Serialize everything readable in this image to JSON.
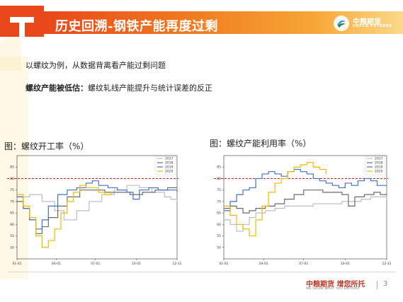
{
  "slide": {
    "title": "历史回溯-钢铁产能再度过剩",
    "logo_cn": "中粮期货",
    "logo_en": "COFCO FUTURES",
    "text1": "以螺纹为例，从数据背离看产能过剩问题",
    "text2_bold": "螺纹产能被低估：",
    "text2_rest": "螺纹轧线产能提升与统计误差的反正",
    "caption_left": "图：螺纹开工率（%）",
    "caption_right": "图：螺纹产能利用率（%）",
    "footer_cn": "中粮期货 增您所托",
    "footer_en": "WE GROW WHAT YOU ENTRUST",
    "page_number": "3"
  },
  "colors": {
    "header_start": "#e8471a",
    "header_end": "#fbd98a",
    "s2017": "#bdbdbd",
    "s2018": "#6b6b6b",
    "s2019": "#4472c4",
    "s2020": "#f5b800",
    "reference": "#d7191c"
  },
  "chart_data": [
    {
      "type": "line",
      "x_ticks": [
        "01-01",
        "04-01",
        "07-01",
        "10-01",
        "12-31"
      ],
      "ylim": [
        45,
        90
      ],
      "y_ticks": [
        "50",
        "55",
        "60",
        "65",
        "70",
        "75",
        "80",
        "85"
      ],
      "reference_line": 80,
      "legend_position": "top-right",
      "series": [
        {
          "name": "2017",
          "values": [
            [
              1,
              72
            ],
            [
              5,
              73
            ],
            [
              9,
              70
            ],
            [
              13,
              66
            ],
            [
              16,
              62
            ],
            [
              20,
              66
            ],
            [
              24,
              70
            ],
            [
              28,
              73
            ],
            [
              32,
              75
            ],
            [
              36,
              77
            ],
            [
              40,
              76
            ],
            [
              44,
              74
            ],
            [
              48,
              72
            ],
            [
              50,
              71
            ],
            [
              52,
              70
            ]
          ]
        },
        {
          "name": "2018",
          "values": [
            [
              1,
              70
            ],
            [
              3,
              67
            ],
            [
              5,
              62
            ],
            [
              7,
              56
            ],
            [
              9,
              59
            ],
            [
              11,
              63
            ],
            [
              14,
              68
            ],
            [
              17,
              72
            ],
            [
              21,
              75
            ],
            [
              25,
              75
            ],
            [
              29,
              74
            ],
            [
              33,
              74
            ],
            [
              37,
              73
            ],
            [
              41,
              74
            ],
            [
              45,
              75
            ],
            [
              49,
              76
            ],
            [
              52,
              76
            ]
          ]
        },
        {
          "name": "2019",
          "values": [
            [
              1,
              72
            ],
            [
              3,
              67
            ],
            [
              5,
              62
            ],
            [
              7,
              58
            ],
            [
              9,
              62
            ],
            [
              11,
              68
            ],
            [
              14,
              73
            ],
            [
              17,
              75
            ],
            [
              20,
              76
            ],
            [
              23,
              78
            ],
            [
              25,
              79
            ],
            [
              27,
              77
            ],
            [
              30,
              76
            ],
            [
              33,
              75
            ],
            [
              36,
              74
            ],
            [
              38,
              71
            ],
            [
              40,
              75
            ],
            [
              43,
              76
            ],
            [
              46,
              75
            ],
            [
              49,
              75
            ],
            [
              52,
              74
            ]
          ]
        },
        {
          "name": "2020",
          "values": [
            [
              1,
              73
            ],
            [
              3,
              68
            ],
            [
              5,
              63
            ],
            [
              7,
              55
            ],
            [
              9,
              50
            ],
            [
              11,
              53
            ],
            [
              13,
              58
            ],
            [
              15,
              65
            ],
            [
              17,
              70
            ],
            [
              19,
              74
            ],
            [
              21,
              77
            ],
            [
              23,
              76
            ],
            [
              25,
              76
            ],
            [
              27,
              74
            ],
            [
              29,
              73
            ],
            [
              31,
              74
            ]
          ]
        }
      ]
    },
    {
      "type": "line",
      "x_ticks": [
        "01-01",
        "04-01",
        "07-01",
        "10-01",
        "12-31"
      ],
      "ylim": [
        45,
        90
      ],
      "y_ticks": [
        "50",
        "55",
        "60",
        "65",
        "70",
        "75",
        "80",
        "85"
      ],
      "reference_line": 80,
      "legend_position": "top-right",
      "series": [
        {
          "name": "2017",
          "values": [
            [
              1,
              62
            ],
            [
              3,
              60
            ],
            [
              5,
              57
            ],
            [
              7,
              60
            ],
            [
              9,
              63
            ],
            [
              11,
              65
            ],
            [
              14,
              66
            ],
            [
              17,
              67
            ],
            [
              20,
              68
            ],
            [
              23,
              68
            ],
            [
              26,
              68
            ],
            [
              29,
              69
            ],
            [
              32,
              69
            ],
            [
              35,
              69
            ],
            [
              38,
              70
            ],
            [
              41,
              70
            ],
            [
              44,
              71
            ],
            [
              47,
              72
            ],
            [
              50,
              72
            ],
            [
              52,
              71
            ]
          ]
        },
        {
          "name": "2018",
          "values": [
            [
              1,
              67
            ],
            [
              3,
              68
            ],
            [
              5,
              67
            ],
            [
              7,
              65
            ],
            [
              9,
              66
            ],
            [
              11,
              67
            ],
            [
              14,
              68
            ],
            [
              17,
              69
            ],
            [
              20,
              71
            ],
            [
              23,
              73
            ],
            [
              26,
              75
            ],
            [
              29,
              75
            ],
            [
              32,
              74
            ],
            [
              35,
              74
            ],
            [
              38,
              73
            ],
            [
              40,
              68
            ],
            [
              42,
              72
            ],
            [
              45,
              73
            ],
            [
              48,
              74
            ],
            [
              50,
              73
            ],
            [
              52,
              73
            ]
          ]
        },
        {
          "name": "2019",
          "values": [
            [
              1,
              66
            ],
            [
              3,
              70
            ],
            [
              5,
              73
            ],
            [
              7,
              75
            ],
            [
              9,
              76
            ],
            [
              11,
              80
            ],
            [
              13,
              82
            ],
            [
              15,
              83
            ],
            [
              17,
              82
            ],
            [
              19,
              81
            ],
            [
              21,
              83
            ],
            [
              23,
              84
            ],
            [
              25,
              83
            ],
            [
              27,
              82
            ],
            [
              29,
              80
            ],
            [
              31,
              79
            ],
            [
              33,
              78
            ],
            [
              35,
              77
            ],
            [
              37,
              76
            ],
            [
              39,
              78
            ],
            [
              41,
              77
            ],
            [
              43,
              79
            ],
            [
              45,
              80
            ],
            [
              47,
              79
            ],
            [
              49,
              77
            ],
            [
              52,
              77
            ]
          ]
        },
        {
          "name": "2020",
          "values": [
            [
              1,
              68
            ],
            [
              3,
              64
            ],
            [
              5,
              60
            ],
            [
              7,
              58
            ],
            [
              9,
              55
            ],
            [
              11,
              62
            ],
            [
              13,
              68
            ],
            [
              15,
              74
            ],
            [
              17,
              78
            ],
            [
              19,
              80
            ],
            [
              21,
              83
            ],
            [
              23,
              85
            ],
            [
              25,
              86
            ],
            [
              27,
              87
            ],
            [
              29,
              85
            ],
            [
              31,
              84
            ],
            [
              33,
              82
            ]
          ]
        }
      ]
    }
  ]
}
